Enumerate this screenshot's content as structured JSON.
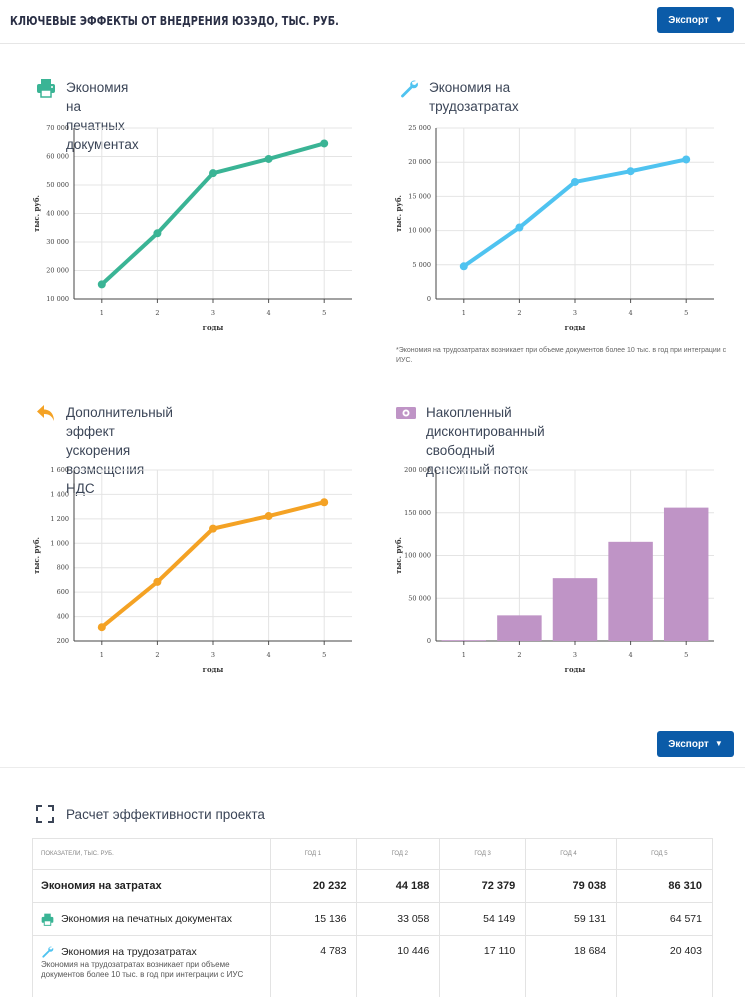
{
  "header": {
    "title": "КЛЮЧЕВЫЕ ЭФФЕКТЫ ОТ ВНЕДРЕНИЯ ЮЗЭДО, ТЫС. РУБ."
  },
  "export_label": "Экспорт",
  "colors": {
    "accent": "#0b5ba8",
    "green": "#3ab495",
    "blue": "#4fc3f0",
    "orange": "#f4a224",
    "purple": "#bf94c6"
  },
  "panels": {
    "print": {
      "title": "Экономия на печатных документах",
      "icon": "printer-icon"
    },
    "labor": {
      "title": "Экономия на трудозатратах",
      "icon": "wrench-icon",
      "note": "*Экономия на трудозатратах возникает при объеме документов более 10 тыс. в год при интеграции с ИУС."
    },
    "vat": {
      "title_line1": "Дополнительный эффект ускорения",
      "title_line2": "возмещения НДС",
      "icon": "back-arrow-icon"
    },
    "cash": {
      "title_line1": "Накопленный дисконтированный свободный",
      "title_line2": "денежный поток",
      "icon": "cash-icon"
    }
  },
  "chart_data": [
    {
      "type": "line",
      "id": "print",
      "x": [
        1,
        2,
        3,
        4,
        5
      ],
      "values": [
        15136,
        33058,
        54149,
        59131,
        64571
      ],
      "xlabel": "годы",
      "ylabel": "тыс. руб.",
      "ylim": [
        10000,
        70000
      ],
      "yticks": [
        10000,
        20000,
        30000,
        40000,
        50000,
        60000,
        70000
      ],
      "ytick_labels": [
        "10 000",
        "20 000",
        "30 000",
        "40 000",
        "50 000",
        "60 000",
        "70 000"
      ],
      "color": "#3ab495",
      "grid": true
    },
    {
      "type": "line",
      "id": "labor",
      "x": [
        1,
        2,
        3,
        4,
        5
      ],
      "values": [
        4783,
        10446,
        17110,
        18684,
        20403
      ],
      "xlabel": "годы",
      "ylabel": "тыс. руб.",
      "ylim": [
        0,
        25000
      ],
      "yticks": [
        0,
        5000,
        10000,
        15000,
        20000,
        25000
      ],
      "ytick_labels": [
        "0",
        "5 000",
        "10 000",
        "15 000",
        "20 000",
        "25 000"
      ],
      "color": "#4fc3f0",
      "grid": true
    },
    {
      "type": "line",
      "id": "vat",
      "x": [
        1,
        2,
        3,
        4,
        5
      ],
      "values": [
        313,
        684,
        1120,
        1223,
        1336
      ],
      "xlabel": "годы",
      "ylabel": "тыс. руб.",
      "ylim": [
        200,
        1600
      ],
      "yticks": [
        200,
        400,
        600,
        800,
        1000,
        1200,
        1400,
        1600
      ],
      "ytick_labels": [
        "200",
        "400",
        "600",
        "800",
        "1 000",
        "1 200",
        "1 400",
        "1 600"
      ],
      "color": "#f4a224",
      "grid": true
    },
    {
      "type": "bar",
      "id": "cash",
      "categories": [
        "1",
        "2",
        "3",
        "4",
        "5"
      ],
      "values": [
        1000,
        30000,
        73500,
        116000,
        156000
      ],
      "xlabel": "годы",
      "ylabel": "тыс. руб.",
      "ylim": [
        0,
        200000
      ],
      "yticks": [
        0,
        50000,
        100000,
        150000,
        200000
      ],
      "ytick_labels": [
        "0",
        "50 000",
        "100 000",
        "150 000",
        "200 000"
      ],
      "color": "#bf94c6",
      "grid": true
    }
  ],
  "calc": {
    "title": "Расчет эффективности проекта",
    "headers": [
      "ПОКАЗАТЕЛИ, ТЫС. РУБ.",
      "ГОД 1",
      "ГОД 2",
      "ГОД 3",
      "ГОД 4",
      "ГОД 5"
    ],
    "rows": [
      {
        "label": "Экономия на затратах",
        "values": [
          "20 232",
          "44 188",
          "72 379",
          "79 038",
          "86 310"
        ]
      },
      {
        "label": "Экономия на печатных документах",
        "values": [
          "15 136",
          "33 058",
          "54 149",
          "59 131",
          "64 571"
        ]
      },
      {
        "label": "Экономия на трудозатратах",
        "note": "Экономия на трудозатратах возникает при объеме документов более 10 тыс. в год при интеграции с ИУС",
        "values": [
          "4 783",
          "10 446",
          "17 110",
          "18 684",
          "20 403"
        ]
      }
    ]
  }
}
